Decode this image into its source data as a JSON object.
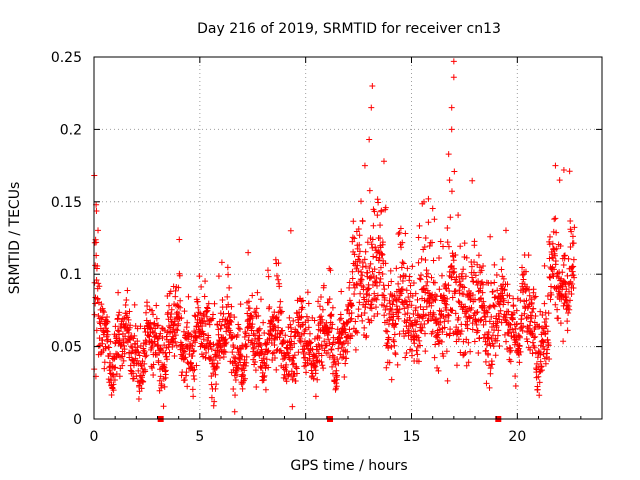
{
  "chart_data": {
    "type": "scatter",
    "title": "Day 216 of 2019, SRMTID for receiver cn13",
    "xlabel": "GPS time / hours",
    "ylabel": "SRMTID / TECUs",
    "xlim": [
      0,
      24
    ],
    "ylim": [
      0,
      0.25
    ],
    "x_ticks": [
      0,
      5,
      10,
      15,
      20
    ],
    "x_tick_labels": [
      "0",
      "5",
      "10",
      "15",
      "20"
    ],
    "y_ticks": [
      0,
      0.05,
      0.1,
      0.15,
      0.2,
      0.25
    ],
    "y_tick_labels": [
      "0",
      "0.05",
      "0.1",
      "0.15",
      "0.2",
      "0.25"
    ],
    "grid": true,
    "marker": "+",
    "series_color": "#ff0000",
    "gap_marker_color": "#ff0000",
    "series": [
      {
        "name": "SRMTID",
        "note": "approximately 2400 points; density described below",
        "segments": [
          {
            "x_start": 0.0,
            "x_end": 0.25,
            "median": 0.075,
            "spread": 0.035
          },
          {
            "x_start": 0.25,
            "x_end": 2.0,
            "median": 0.052,
            "spread": 0.018
          },
          {
            "x_start": 2.0,
            "x_end": 3.2,
            "median": 0.045,
            "spread": 0.018
          },
          {
            "x_start": 3.2,
            "x_end": 5.5,
            "median": 0.055,
            "spread": 0.02
          },
          {
            "x_start": 5.5,
            "x_end": 9.5,
            "median": 0.052,
            "spread": 0.02
          },
          {
            "x_start": 9.5,
            "x_end": 11.5,
            "median": 0.05,
            "spread": 0.02
          },
          {
            "x_start": 11.5,
            "x_end": 12.2,
            "median": 0.06,
            "spread": 0.02
          },
          {
            "x_start": 12.2,
            "x_end": 13.8,
            "median": 0.095,
            "spread": 0.03
          },
          {
            "x_start": 13.8,
            "x_end": 16.5,
            "median": 0.075,
            "spread": 0.03
          },
          {
            "x_start": 16.5,
            "x_end": 18.0,
            "median": 0.08,
            "spread": 0.035
          },
          {
            "x_start": 18.0,
            "x_end": 20.5,
            "median": 0.07,
            "spread": 0.025
          },
          {
            "x_start": 20.5,
            "x_end": 21.5,
            "median": 0.06,
            "spread": 0.025
          },
          {
            "x_start": 21.5,
            "x_end": 22.7,
            "median": 0.1,
            "spread": 0.03
          }
        ],
        "notable_peaks": [
          {
            "x": 0.1,
            "y": 0.148
          },
          {
            "x": 0.1,
            "y": 0.122
          },
          {
            "x": 9.3,
            "y": 0.13
          },
          {
            "x": 12.8,
            "y": 0.175
          },
          {
            "x": 13.0,
            "y": 0.193
          },
          {
            "x": 13.1,
            "y": 0.215
          },
          {
            "x": 13.15,
            "y": 0.23
          },
          {
            "x": 13.7,
            "y": 0.178
          },
          {
            "x": 15.8,
            "y": 0.152
          },
          {
            "x": 16.8,
            "y": 0.165
          },
          {
            "x": 16.9,
            "y": 0.2
          },
          {
            "x": 16.9,
            "y": 0.215
          },
          {
            "x": 17.0,
            "y": 0.236
          },
          {
            "x": 17.0,
            "y": 0.247
          },
          {
            "x": 21.8,
            "y": 0.175
          },
          {
            "x": 22.2,
            "y": 0.172
          },
          {
            "x": 22.0,
            "y": 0.165
          }
        ]
      }
    ],
    "gap_markers_x": [
      3.15,
      11.15,
      19.1
    ]
  }
}
